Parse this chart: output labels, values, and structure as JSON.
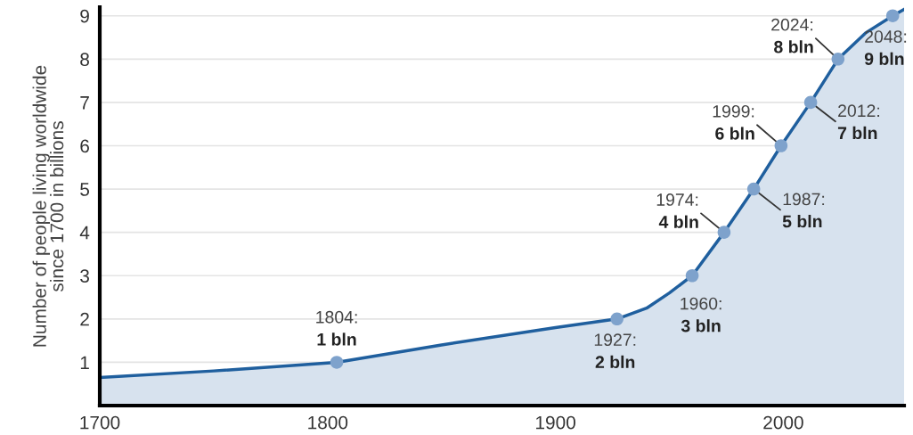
{
  "chart_data": {
    "type": "area",
    "ylabel": "Number of people living worldwide\nsince 1700 in billions",
    "xlim": [
      1700,
      2053
    ],
    "xticks": [
      1700,
      1800,
      1900,
      2000
    ],
    "ylim": [
      0,
      9.2
    ],
    "yticks": [
      1,
      2,
      3,
      4,
      5,
      6,
      7,
      8,
      9
    ],
    "grid": "y",
    "legend": false,
    "series": [
      {
        "color": "#1f5f9e",
        "x": [
          1700,
          1750,
          1804,
          1850,
          1900,
          1927,
          1940,
          1950,
          1960,
          1974,
          1987,
          1999,
          2012,
          2024,
          2036,
          2048,
          2053
        ],
        "values": [
          0.65,
          0.8,
          1,
          1.4,
          1.8,
          2,
          2.25,
          2.6,
          3,
          4,
          5,
          6,
          7,
          8,
          8.6,
          9,
          9.15
        ]
      },
      {
        "type": "scatter",
        "color": "#7ea2cc",
        "marker": "circle",
        "x": [
          1804,
          1927,
          1960,
          1974,
          1987,
          1999,
          2012,
          2024,
          2048
        ],
        "values": [
          1,
          2,
          3,
          4,
          5,
          6,
          7,
          8,
          9
        ]
      }
    ],
    "annotations": [
      {
        "text": "1804:\n1 bln",
        "x": 1804,
        "y": 1
      },
      {
        "text": "1927:\n2 bln",
        "x": 1927,
        "y": 2
      },
      {
        "text": "1960:\n3 bln",
        "x": 1960,
        "y": 3
      },
      {
        "text": "1974:\n4 bln",
        "x": 1974,
        "y": 4
      },
      {
        "text": "1987:\n5 bln",
        "x": 1987,
        "y": 5
      },
      {
        "text": "1999:\n6 bln",
        "x": 1999,
        "y": 6
      },
      {
        "text": "2012:\n7 bln",
        "x": 2012,
        "y": 7
      },
      {
        "text": "2024:\n8 bln",
        "x": 2024,
        "y": 8
      },
      {
        "text": "2048:\n9 bln",
        "x": 2048,
        "y": 9
      }
    ]
  }
}
